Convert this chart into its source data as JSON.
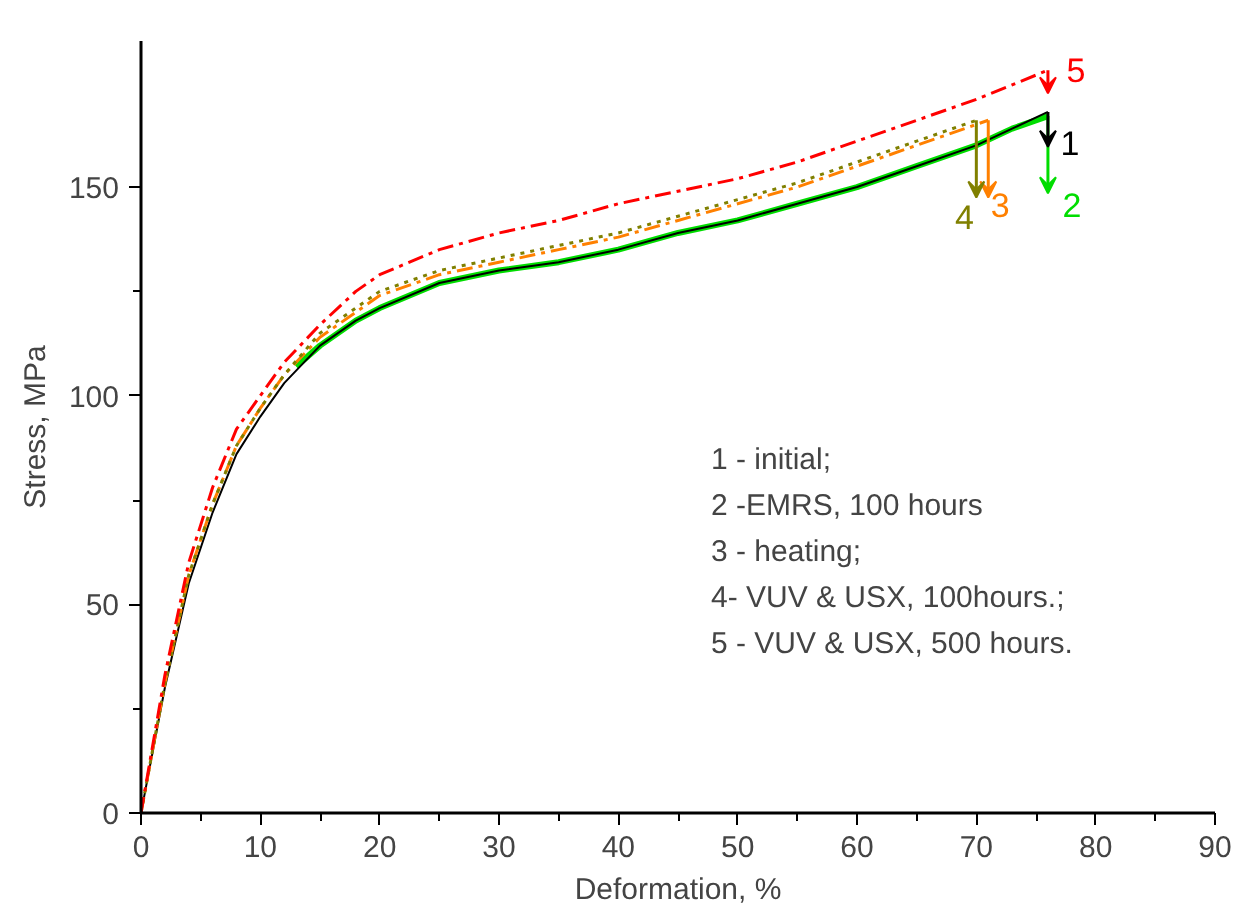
{
  "chart_data": {
    "type": "line",
    "xlabel": "Deformation, %",
    "ylabel": "Stress, MPa",
    "xlim": [
      0,
      90
    ],
    "xticks": [
      0,
      10,
      20,
      30,
      40,
      50,
      60,
      70,
      80,
      90
    ],
    "ylim": [
      0,
      185
    ],
    "yticks": [
      0,
      50,
      100,
      150
    ],
    "grid": false,
    "legend": "top right",
    "series": [
      {
        "name": "1",
        "color": "#000000",
        "line_style": "solid",
        "x": [
          0,
          2,
          4,
          6,
          8,
          10,
          12,
          15,
          18,
          20,
          25,
          30,
          35,
          40,
          45,
          50,
          55,
          60,
          65,
          70,
          73,
          76
        ],
        "values": [
          0,
          30,
          55,
          72,
          86,
          95,
          103,
          112,
          118,
          121,
          127,
          130,
          132,
          135,
          139,
          142,
          146,
          150,
          155,
          160,
          164,
          168
        ]
      },
      {
        "name": "2",
        "color": "#00dd00",
        "line_style": "solid",
        "x": [
          13,
          15,
          18,
          20,
          25,
          30,
          35,
          40,
          45,
          50,
          55,
          60,
          65,
          70,
          73,
          76
        ],
        "values": [
          107,
          112,
          118,
          121,
          127,
          130,
          132,
          135,
          139,
          142,
          146,
          150,
          155,
          160,
          164,
          167
        ]
      },
      {
        "name": "3",
        "color": "#ff8000",
        "line_style": "dashdot",
        "x": [
          0,
          2,
          4,
          6,
          8,
          10,
          12,
          15,
          18,
          20,
          25,
          30,
          35,
          40,
          45,
          50,
          55,
          60,
          65,
          71
        ],
        "values": [
          0,
          31,
          57,
          74,
          88,
          97,
          105,
          114,
          120,
          124,
          129,
          132,
          135,
          138,
          142,
          146,
          150,
          155,
          160,
          166
        ]
      },
      {
        "name": "4",
        "color": "#808000",
        "line_style": "dotted",
        "x": [
          0,
          2,
          4,
          6,
          8,
          10,
          12,
          15,
          18,
          20,
          25,
          30,
          35,
          40,
          45,
          50,
          55,
          60,
          65,
          70
        ],
        "values": [
          0,
          31,
          57,
          74,
          88,
          97,
          105,
          115,
          121,
          125,
          130,
          133,
          136,
          139,
          143,
          147,
          151,
          156,
          161,
          166
        ]
      },
      {
        "name": "5",
        "color": "#ff0000",
        "line_style": "dashdot",
        "x": [
          0,
          2,
          4,
          6,
          8,
          10,
          12,
          15,
          18,
          20,
          25,
          30,
          35,
          40,
          45,
          50,
          55,
          60,
          65,
          70,
          76
        ],
        "values": [
          0,
          33,
          60,
          78,
          92,
          100,
          108,
          117,
          125,
          129,
          135,
          139,
          142,
          146,
          149,
          152,
          156,
          161,
          166,
          171,
          178
        ]
      }
    ],
    "annotations": [
      "1 - initial;",
      "2 -EMRS, 100 hours",
      "3 - heating;",
      "4-  VUV & USX, 100hours.;",
      "5 - VUV & USX, 500 hours."
    ]
  }
}
